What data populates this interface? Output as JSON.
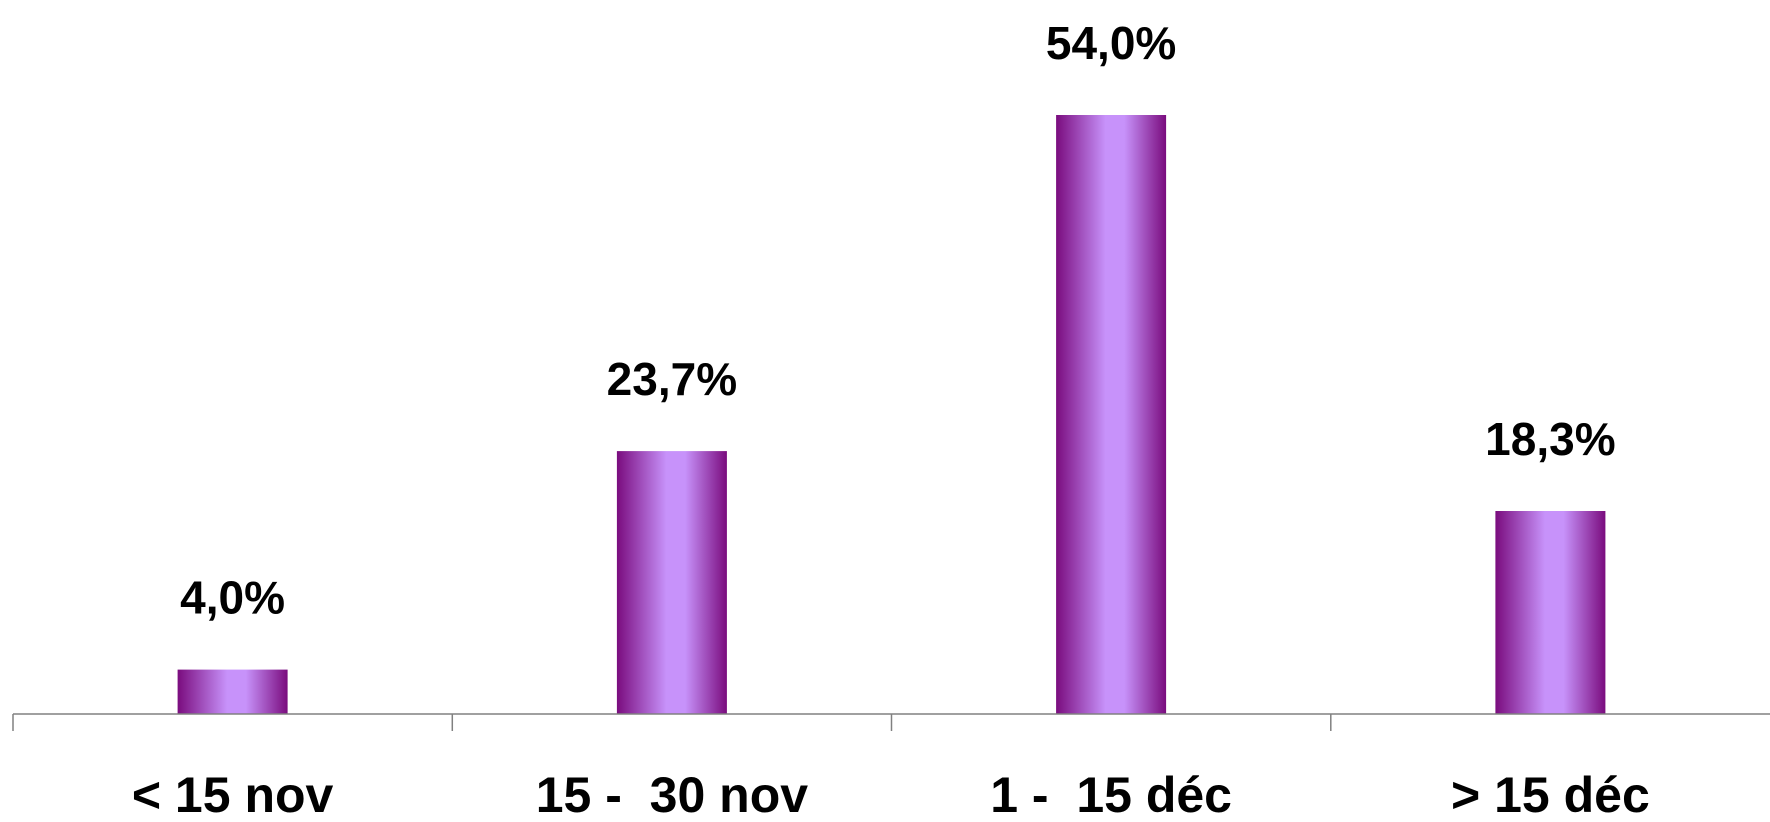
{
  "chart_data": {
    "type": "bar",
    "categories": [
      "< 15 nov",
      "15 -  30 nov",
      "1 -  15 déc",
      "> 15 déc"
    ],
    "values": [
      4.0,
      23.7,
      54.0,
      18.3
    ],
    "value_labels": [
      "4,0%",
      "23,7%",
      "54,0%",
      "18,3%"
    ],
    "unit": "%",
    "ylim": [
      0,
      54.0
    ],
    "grid": false,
    "legend": "none",
    "bar_colors": {
      "edge": "#7a0c7e",
      "center": "#c792fa"
    },
    "axis_color": "#808080"
  }
}
